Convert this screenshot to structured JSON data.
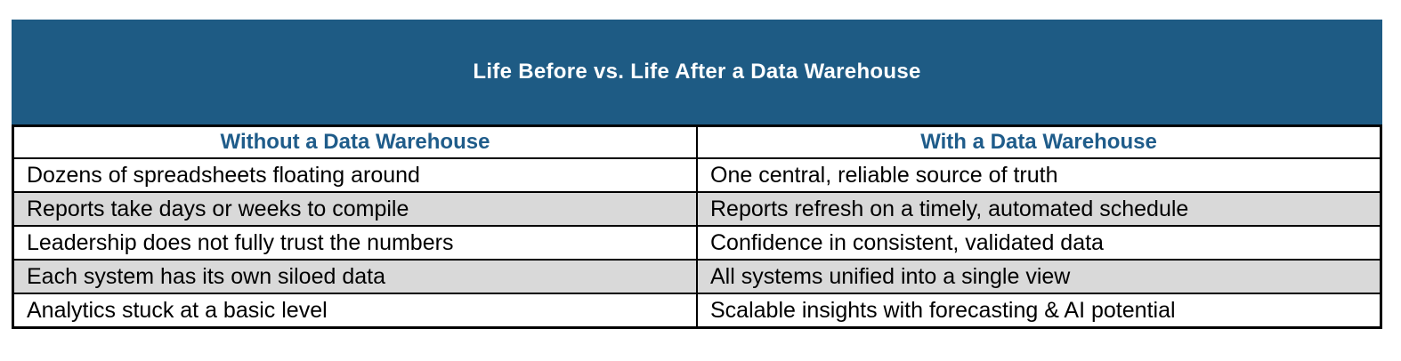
{
  "banner": {
    "title": "Life Before vs. Life After a Data Warehouse",
    "bg_color": "#1E5B84",
    "text_color": "#FFFFFF"
  },
  "table": {
    "header_text_color": "#1F5C8A",
    "stripe_color": "#D9D9D9",
    "columns": [
      {
        "label": "Without a Data Warehouse"
      },
      {
        "label": "With a Data Warehouse"
      }
    ],
    "rows": [
      [
        "Dozens of spreadsheets floating around",
        "One central, reliable source of truth"
      ],
      [
        "Reports take days or weeks to compile",
        "Reports refresh on a timely, automated schedule"
      ],
      [
        "Leadership does not fully trust the numbers",
        "Confidence in consistent, validated data"
      ],
      [
        "Each system has its own siloed data",
        "All systems unified into a single view"
      ],
      [
        "Analytics stuck at a basic level",
        "Scalable insights with forecasting & AI potential"
      ]
    ]
  }
}
